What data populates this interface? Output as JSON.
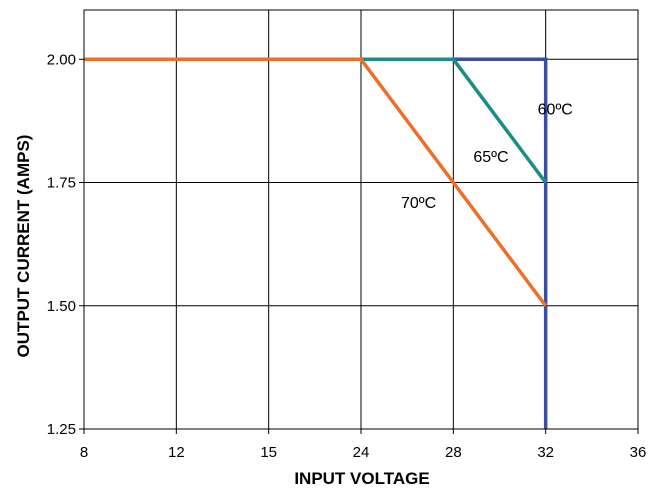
{
  "chart_data": {
    "type": "line",
    "title": "",
    "xlabel": "INPUT VOLTAGE",
    "ylabel": "OUTPUT CURRENT (AMPS)",
    "x_categories": [
      "8",
      "12",
      "15",
      "24",
      "28",
      "32",
      "36"
    ],
    "y_ticks": [
      "1.25",
      "1.50",
      "1.75",
      "2.00"
    ],
    "ylim": [
      1.25,
      2.1
    ],
    "grid": true,
    "series": [
      {
        "name": "60ºC",
        "color": "#3b4ea1",
        "points": [
          {
            "x": "8",
            "y": 2.0
          },
          {
            "x": "32",
            "y": 2.0
          },
          {
            "x": "32",
            "y": 1.25
          }
        ]
      },
      {
        "name": "65ºC",
        "color": "#1b8c86",
        "points": [
          {
            "x": "8",
            "y": 2.0
          },
          {
            "x": "28",
            "y": 2.0
          },
          {
            "x": "32",
            "y": 1.75
          }
        ]
      },
      {
        "name": "70ºC",
        "color": "#ee7028",
        "points": [
          {
            "x": "8",
            "y": 2.0
          },
          {
            "x": "24",
            "y": 2.0
          },
          {
            "x": "32",
            "y": 1.5
          }
        ]
      }
    ]
  }
}
